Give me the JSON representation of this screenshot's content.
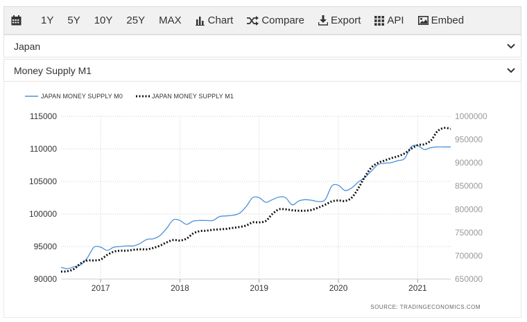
{
  "toolbar": {
    "items": [
      {
        "label": "1Y"
      },
      {
        "label": "5Y"
      },
      {
        "label": "10Y"
      },
      {
        "label": "25Y"
      },
      {
        "label": "MAX"
      },
      {
        "label": "Chart"
      },
      {
        "label": "Compare"
      },
      {
        "label": "Export"
      },
      {
        "label": "API"
      },
      {
        "label": "Embed"
      }
    ]
  },
  "country_select": {
    "value": "Japan"
  },
  "indicator_select": {
    "value": "Money Supply M1"
  },
  "colors": {
    "m0": "#4a90d9",
    "m1": "#111111",
    "grid": "#cccccc"
  },
  "chart_data": {
    "type": "line",
    "legend_position": "top-left",
    "grid": true,
    "source": "SOURCE: TRADINGECONOMICS.COM",
    "x_ticks": [
      "2017",
      "2018",
      "2019",
      "2020",
      "2021"
    ],
    "y_left_ticks": [
      "90000",
      "95000",
      "100000",
      "105000",
      "110000",
      "115000"
    ],
    "y_right_ticks": [
      "650000",
      "700000",
      "750000",
      "800000",
      "850000",
      "900000",
      "950000",
      "1000000"
    ],
    "y_left_range": [
      90000,
      115000
    ],
    "y_right_range": [
      650000,
      1000000
    ],
    "x_range": [
      "2016-07",
      "2021-06"
    ],
    "series": [
      {
        "name": "JAPAN MONEY SUPPLY M0",
        "axis": "left",
        "style": "solid",
        "points": [
          [
            "2016-07",
            91800
          ],
          [
            "2016-08",
            91600
          ],
          [
            "2016-09",
            91900
          ],
          [
            "2016-10",
            92200
          ],
          [
            "2016-11",
            93300
          ],
          [
            "2016-12",
            94900
          ],
          [
            "2017-01",
            94900
          ],
          [
            "2017-02",
            94400
          ],
          [
            "2017-03",
            94900
          ],
          [
            "2017-04",
            95000
          ],
          [
            "2017-05",
            95100
          ],
          [
            "2017-06",
            95100
          ],
          [
            "2017-07",
            95500
          ],
          [
            "2017-08",
            96100
          ],
          [
            "2017-09",
            96200
          ],
          [
            "2017-10",
            96700
          ],
          [
            "2017-11",
            97800
          ],
          [
            "2017-12",
            99100
          ],
          [
            "2018-01",
            99000
          ],
          [
            "2018-02",
            98400
          ],
          [
            "2018-03",
            98900
          ],
          [
            "2018-04",
            99000
          ],
          [
            "2018-05",
            99000
          ],
          [
            "2018-06",
            99000
          ],
          [
            "2018-07",
            99600
          ],
          [
            "2018-08",
            99700
          ],
          [
            "2018-09",
            99800
          ],
          [
            "2018-10",
            100100
          ],
          [
            "2018-11",
            101100
          ],
          [
            "2018-12",
            102500
          ],
          [
            "2019-01",
            102500
          ],
          [
            "2019-02",
            101800
          ],
          [
            "2019-03",
            102200
          ],
          [
            "2019-04",
            102600
          ],
          [
            "2019-05",
            102500
          ],
          [
            "2019-06",
            101400
          ],
          [
            "2019-07",
            102000
          ],
          [
            "2019-08",
            102200
          ],
          [
            "2019-09",
            102100
          ],
          [
            "2019-10",
            101900
          ],
          [
            "2019-11",
            102200
          ],
          [
            "2019-12",
            104300
          ],
          [
            "2020-01",
            104400
          ],
          [
            "2020-02",
            103600
          ],
          [
            "2020-03",
            104000
          ],
          [
            "2020-04",
            104900
          ],
          [
            "2020-05",
            105600
          ],
          [
            "2020-06",
            106600
          ],
          [
            "2020-07",
            107600
          ],
          [
            "2020-08",
            107800
          ],
          [
            "2020-09",
            107900
          ],
          [
            "2020-10",
            108200
          ],
          [
            "2020-11",
            108500
          ],
          [
            "2020-12",
            110300
          ],
          [
            "2021-01",
            110500
          ],
          [
            "2021-02",
            109900
          ],
          [
            "2021-03",
            110200
          ],
          [
            "2021-04",
            110300
          ],
          [
            "2021-05",
            110300
          ],
          [
            "2021-06",
            110300
          ]
        ]
      },
      {
        "name": "JAPAN MONEY SUPPLY M1",
        "axis": "right",
        "style": "dotted",
        "points": [
          [
            "2016-07",
            666000
          ],
          [
            "2016-08",
            667000
          ],
          [
            "2016-09",
            672000
          ],
          [
            "2016-10",
            684000
          ],
          [
            "2016-11",
            690000
          ],
          [
            "2016-12",
            690000
          ],
          [
            "2017-01",
            692000
          ],
          [
            "2017-02",
            702000
          ],
          [
            "2017-03",
            709000
          ],
          [
            "2017-04",
            711000
          ],
          [
            "2017-05",
            711000
          ],
          [
            "2017-06",
            713000
          ],
          [
            "2017-07",
            714000
          ],
          [
            "2017-08",
            714000
          ],
          [
            "2017-09",
            717000
          ],
          [
            "2017-10",
            722000
          ],
          [
            "2017-11",
            729000
          ],
          [
            "2017-12",
            734000
          ],
          [
            "2018-01",
            733000
          ],
          [
            "2018-02",
            737000
          ],
          [
            "2018-03",
            748000
          ],
          [
            "2018-04",
            753000
          ],
          [
            "2018-05",
            754000
          ],
          [
            "2018-06",
            756000
          ],
          [
            "2018-07",
            757000
          ],
          [
            "2018-08",
            758000
          ],
          [
            "2018-09",
            760000
          ],
          [
            "2018-10",
            762000
          ],
          [
            "2018-11",
            765000
          ],
          [
            "2018-12",
            772000
          ],
          [
            "2019-01",
            772000
          ],
          [
            "2019-02",
            775000
          ],
          [
            "2019-03",
            790000
          ],
          [
            "2019-04",
            800000
          ],
          [
            "2019-05",
            800000
          ],
          [
            "2019-06",
            798000
          ],
          [
            "2019-07",
            797000
          ],
          [
            "2019-08",
            797000
          ],
          [
            "2019-09",
            799000
          ],
          [
            "2019-10",
            804000
          ],
          [
            "2019-11",
            810000
          ],
          [
            "2019-12",
            817000
          ],
          [
            "2020-01",
            819000
          ],
          [
            "2020-02",
            818000
          ],
          [
            "2020-03",
            825000
          ],
          [
            "2020-04",
            845000
          ],
          [
            "2020-05",
            870000
          ],
          [
            "2020-06",
            890000
          ],
          [
            "2020-07",
            900000
          ],
          [
            "2020-08",
            905000
          ],
          [
            "2020-09",
            910000
          ],
          [
            "2020-10",
            914000
          ],
          [
            "2020-11",
            920000
          ],
          [
            "2020-12",
            930000
          ],
          [
            "2021-01",
            938000
          ],
          [
            "2021-02",
            940000
          ],
          [
            "2021-03",
            948000
          ],
          [
            "2021-04",
            968000
          ],
          [
            "2021-05",
            975000
          ],
          [
            "2021-06",
            973000
          ]
        ]
      }
    ]
  }
}
